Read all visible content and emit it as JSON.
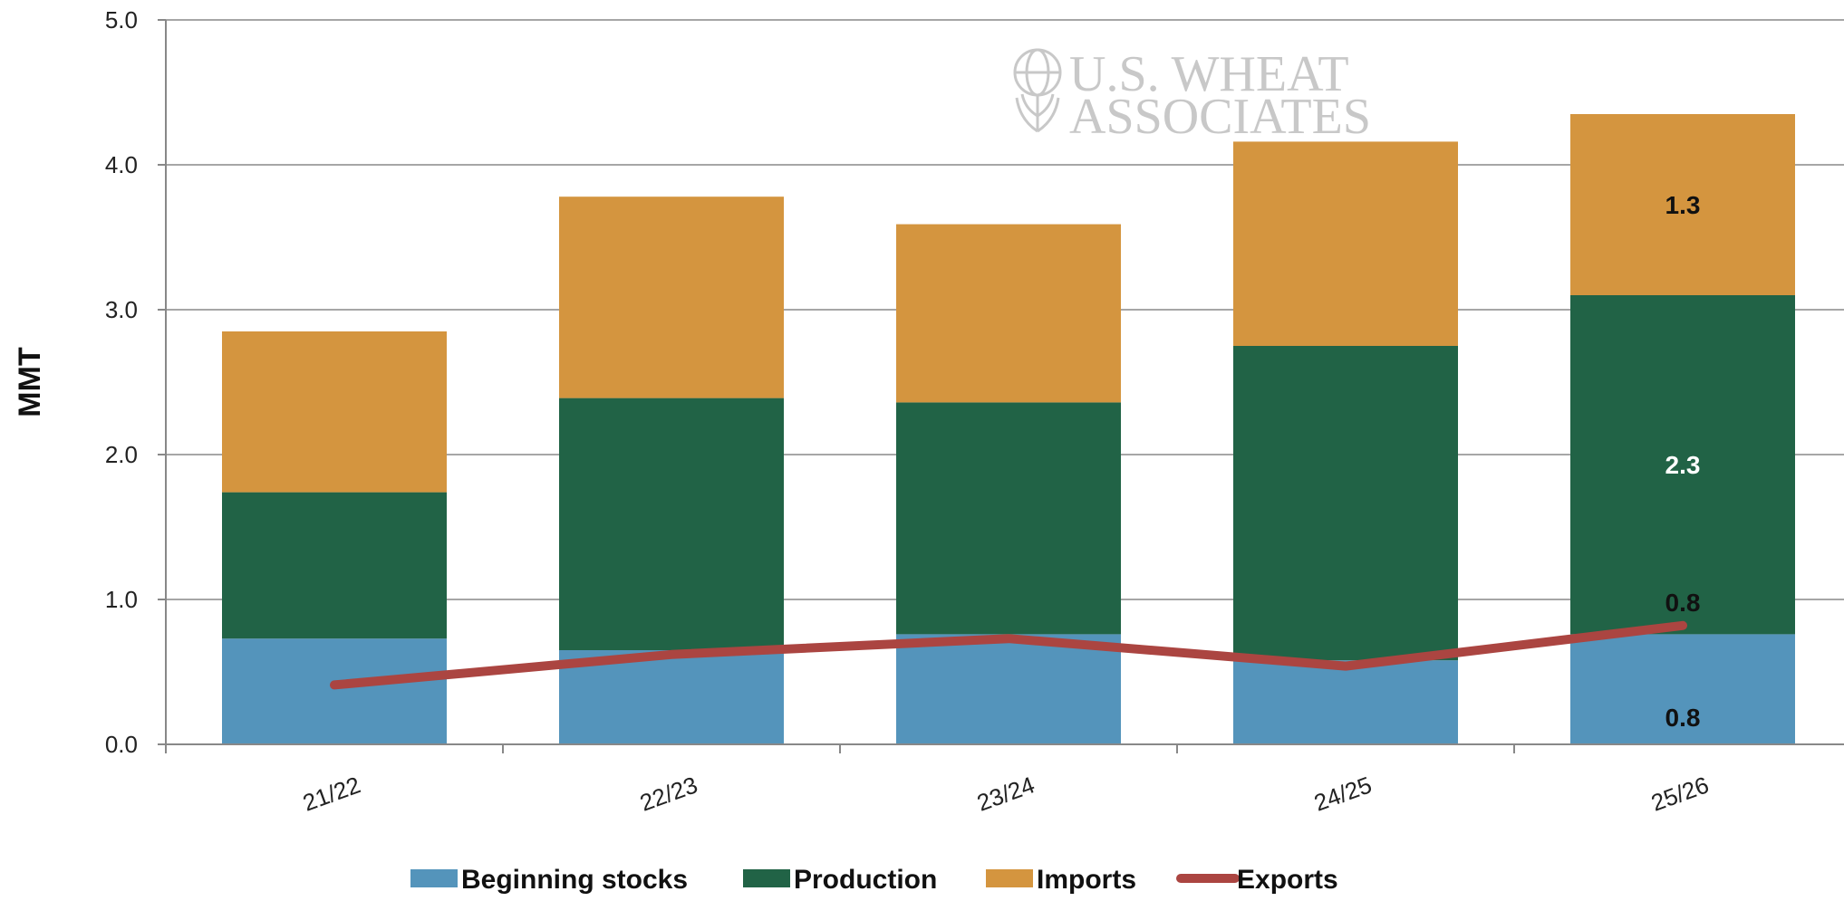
{
  "chart_data": {
    "type": "bar",
    "stacked": true,
    "categories": [
      "21/22",
      "22/23",
      "23/24",
      "24/25",
      "25/26"
    ],
    "series": [
      {
        "name": "Beginning stocks",
        "type": "bar",
        "color": "#5494bb",
        "values": [
          0.73,
          0.65,
          0.76,
          0.58,
          0.76
        ]
      },
      {
        "name": "Production",
        "type": "bar",
        "color": "#216346",
        "values": [
          1.01,
          1.74,
          1.6,
          2.17,
          2.34
        ]
      },
      {
        "name": "Imports",
        "type": "bar",
        "color": "#d4953f",
        "values": [
          1.11,
          1.39,
          1.23,
          1.41,
          1.25
        ]
      },
      {
        "name": "Exports",
        "type": "line",
        "color": "#ab4541",
        "values": [
          0.41,
          0.62,
          0.73,
          0.54,
          0.82
        ]
      }
    ],
    "data_labels": [
      {
        "series": "Beginning stocks",
        "category": "25/26",
        "text": "0.8",
        "color": "#111111"
      },
      {
        "series": "Production",
        "category": "25/26",
        "text": "2.3",
        "color": "#ffffff"
      },
      {
        "series": "Imports",
        "category": "25/26",
        "text": "1.3",
        "color": "#111111"
      },
      {
        "series": "Exports",
        "category": "25/26",
        "text": "0.8",
        "color": "#111111"
      }
    ],
    "title": "",
    "xlabel": "",
    "ylabel": "MMT",
    "ylim": [
      0,
      5
    ],
    "yticks": [
      "0.0",
      "1.0",
      "2.0",
      "3.0",
      "4.0",
      "5.0"
    ],
    "grid": true,
    "legend_position": "bottom"
  },
  "watermark": {
    "line1": "U.S. WHEAT",
    "line2": "ASSOCIATES"
  }
}
